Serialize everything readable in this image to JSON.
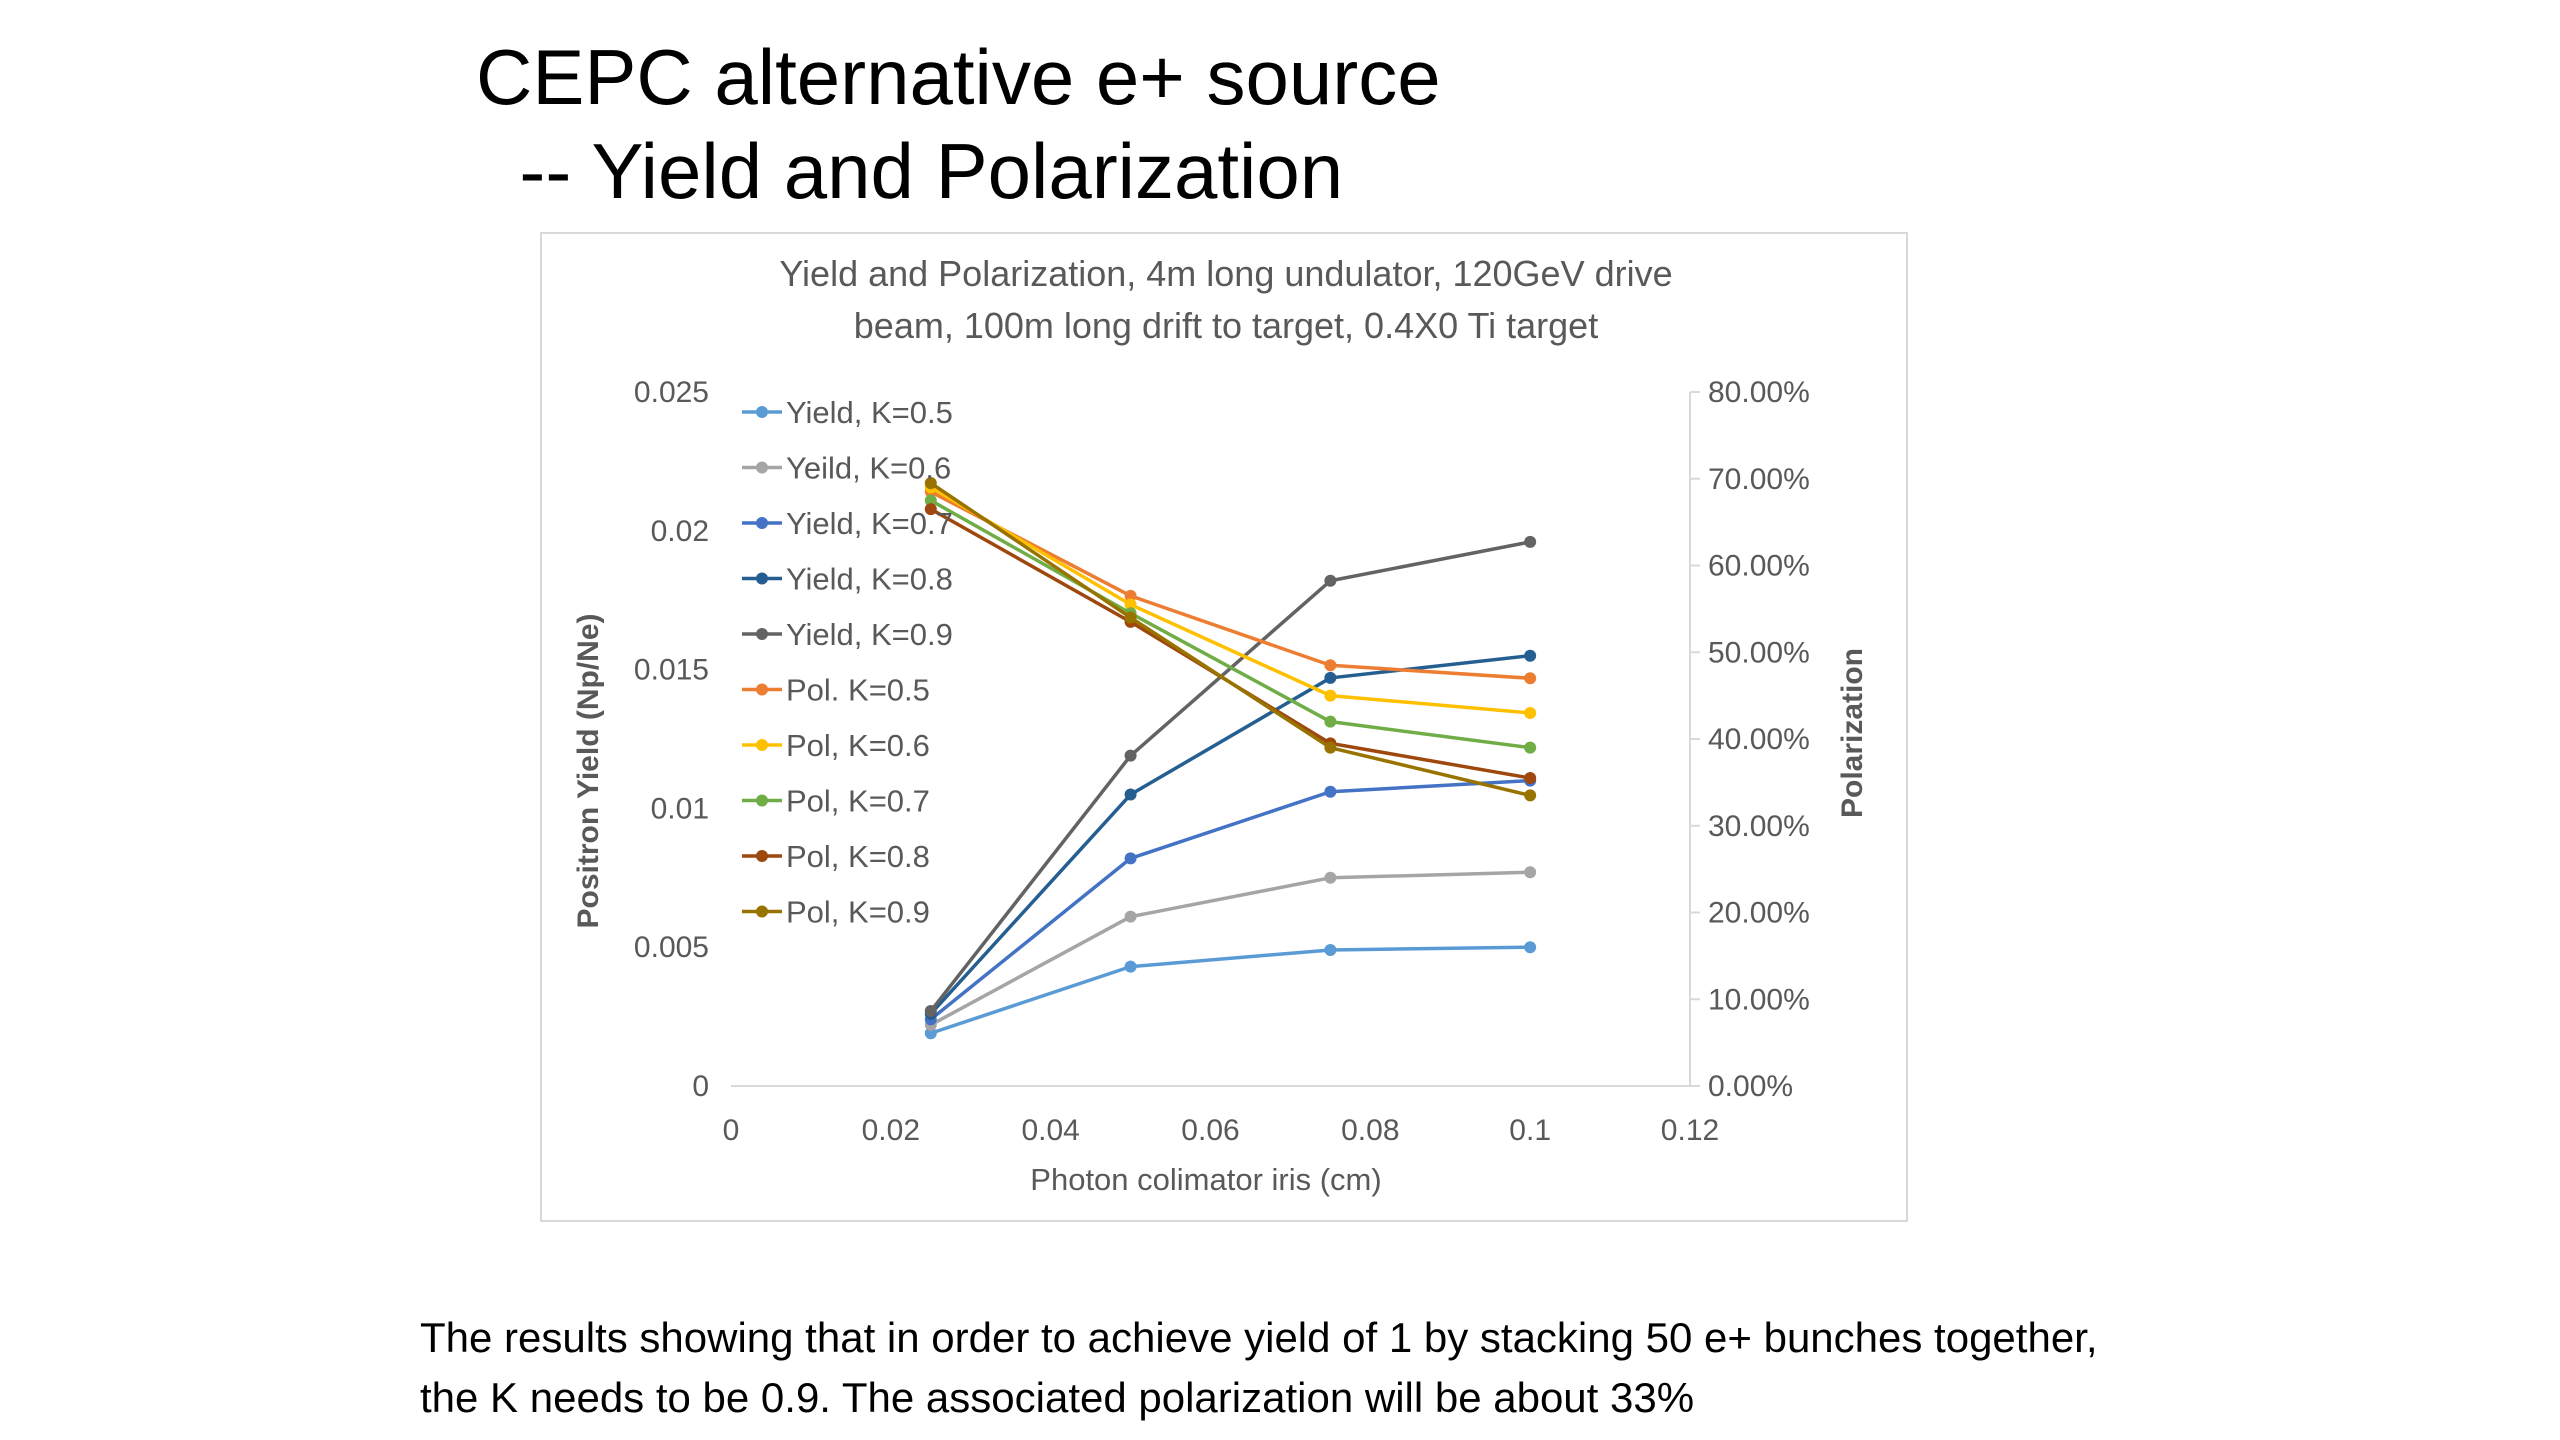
{
  "slide": {
    "title_line1": "CEPC alternative e+ source",
    "title_line2": "  -- Yield and Polarization",
    "caption_line1": "The results showing that in order to achieve yield of 1 by stacking 50 e+ bunches together,",
    "caption_line2": "the K needs to be 0.9.  The associated polarization will be about 33%"
  },
  "chart_data": {
    "type": "line",
    "title_line1": "Yield and Polarization, 4m long undulator, 120GeV drive",
    "title_line2": "beam, 100m long drift to target, 0.4X0 Ti target",
    "xlabel": "Photon colimator iris (cm)",
    "ylabel": "Positron Yield (Np/Ne)",
    "y2label": "Polarization",
    "xlim": [
      0,
      0.12
    ],
    "ylim": [
      0,
      0.025
    ],
    "y2lim": [
      0,
      0.8
    ],
    "x_ticks": [
      "0",
      "0.02",
      "0.04",
      "0.06",
      "0.08",
      "0.1",
      "0.12"
    ],
    "y_ticks": [
      "0",
      "0.005",
      "0.01",
      "0.015",
      "0.02",
      "0.025"
    ],
    "y2_ticks": [
      "0.00%",
      "10.00%",
      "20.00%",
      "30.00%",
      "40.00%",
      "50.00%",
      "60.00%",
      "70.00%",
      "80.00%"
    ],
    "grid": false,
    "legend_position": "top-left (inside plot)",
    "x": [
      0.025,
      0.05,
      0.075,
      0.1
    ],
    "series": [
      {
        "name": "Yield, K=0.5",
        "axis": "left",
        "color": "#5b9bd5",
        "values": [
          0.0019,
          0.0043,
          0.0049,
          0.005
        ]
      },
      {
        "name": "Yeild, K=0.6",
        "axis": "left",
        "color": "#a5a5a5",
        "values": [
          0.0022,
          0.0061,
          0.0075,
          0.0077
        ]
      },
      {
        "name": "Yield, K=0.7",
        "axis": "left",
        "color": "#4472c4",
        "values": [
          0.0024,
          0.0082,
          0.0106,
          0.011
        ]
      },
      {
        "name": "Yield, K=0.8",
        "axis": "left",
        "color": "#255e91",
        "values": [
          0.0026,
          0.0105,
          0.0147,
          0.0155
        ]
      },
      {
        "name": "Yield, K=0.9",
        "axis": "left",
        "color": "#636363",
        "values": [
          0.0027,
          0.0119,
          0.0182,
          0.0196
        ]
      },
      {
        "name": "Pol. K=0.5",
        "axis": "right",
        "color": "#ed7d31",
        "values": [
          0.685,
          0.565,
          0.485,
          0.47
        ]
      },
      {
        "name": "Pol, K=0.6",
        "axis": "right",
        "color": "#ffc000",
        "values": [
          0.69,
          0.555,
          0.45,
          0.43
        ]
      },
      {
        "name": "Pol, K=0.7",
        "axis": "right",
        "color": "#70ad47",
        "values": [
          0.675,
          0.545,
          0.42,
          0.39
        ]
      },
      {
        "name": "Pol, K=0.8",
        "axis": "right",
        "color": "#9e480e",
        "values": [
          0.665,
          0.535,
          0.395,
          0.355
        ]
      },
      {
        "name": "Pol, K=0.9",
        "axis": "right",
        "color": "#997300",
        "values": [
          0.695,
          0.54,
          0.39,
          0.335
        ]
      }
    ]
  }
}
